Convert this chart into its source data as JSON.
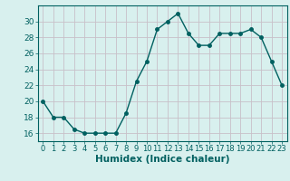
{
  "x": [
    0,
    1,
    2,
    3,
    4,
    5,
    6,
    7,
    8,
    9,
    10,
    11,
    12,
    13,
    14,
    15,
    16,
    17,
    18,
    19,
    20,
    21,
    22,
    23
  ],
  "y": [
    20,
    18,
    18,
    16.5,
    16,
    16,
    16,
    16,
    18.5,
    22.5,
    25,
    29,
    30,
    31,
    28.5,
    27,
    27,
    28.5,
    28.5,
    28.5,
    29,
    28,
    25,
    22
  ],
  "line_color": "#006060",
  "marker_color": "#006060",
  "bg_color": "#d8f0ee",
  "grid_color": "#c8c0c8",
  "xlabel": "Humidex (Indice chaleur)",
  "xlim": [
    -0.5,
    23.5
  ],
  "ylim": [
    15,
    32
  ],
  "yticks": [
    16,
    18,
    20,
    22,
    24,
    26,
    28,
    30
  ],
  "xlabel_fontsize": 7.5,
  "tick_fontsize": 6.5,
  "line_width": 1.0,
  "marker_size": 2.5
}
